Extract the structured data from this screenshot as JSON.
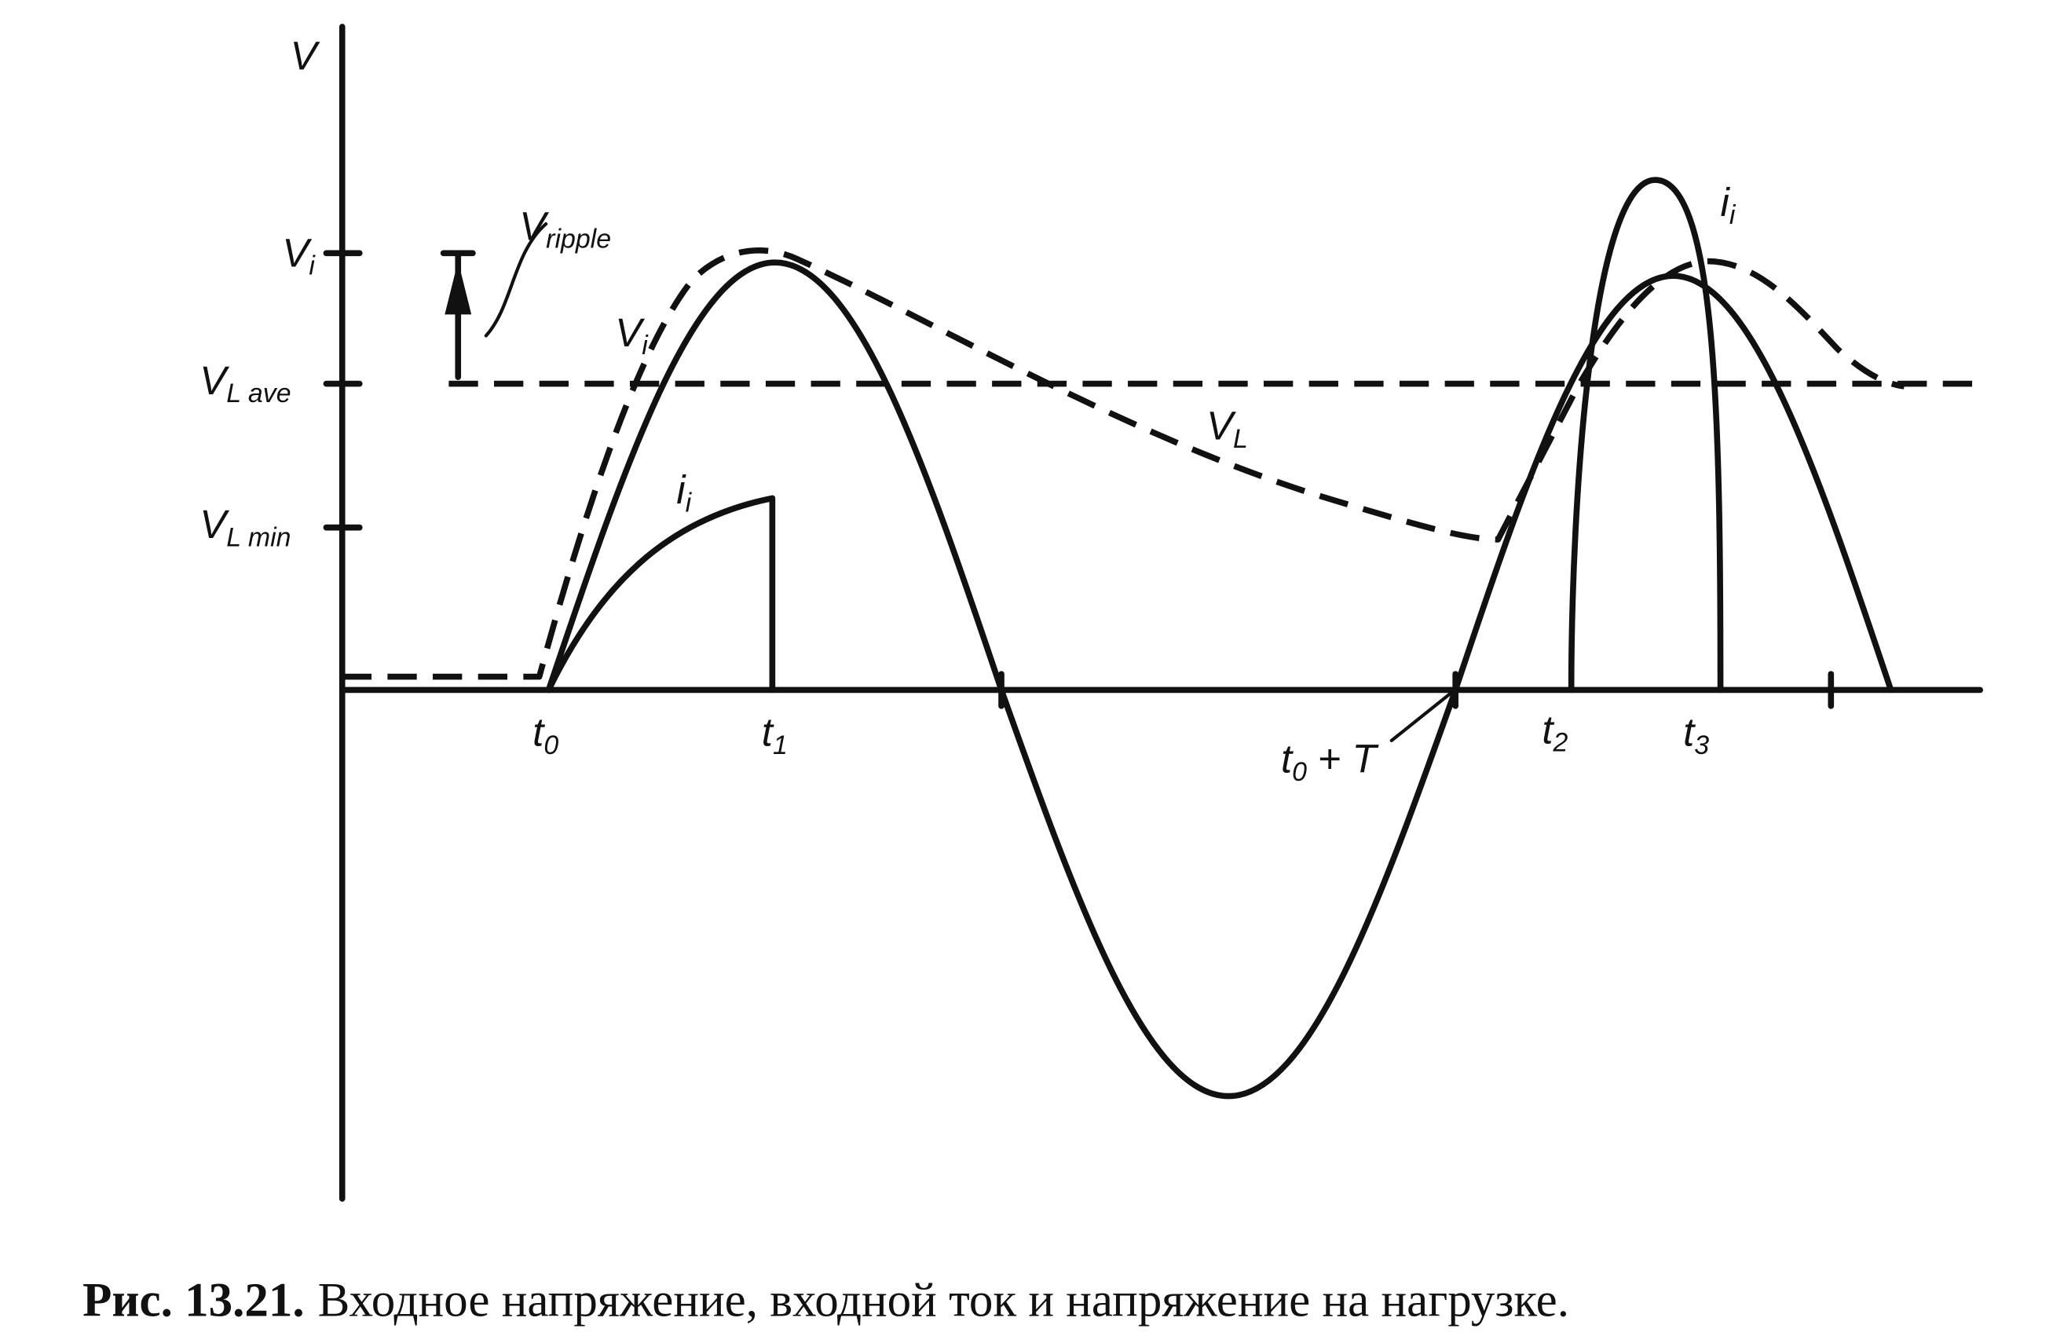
{
  "axis_label": "V",
  "y_labels": [
    {
      "symbol": "V",
      "subscript": "i"
    },
    {
      "symbol": "V",
      "subscript": "L ave"
    },
    {
      "symbol": "V",
      "subscript": "L min"
    }
  ],
  "x_labels": [
    {
      "symbol": "t",
      "subscript": "0"
    },
    {
      "symbol": "t",
      "subscript": "1"
    },
    {
      "symbol": "t",
      "subscript": "0",
      "suffix": "+ T"
    },
    {
      "symbol": "t",
      "subscript": "2"
    },
    {
      "symbol": "t",
      "subscript": "3"
    }
  ],
  "curve_labels": {
    "ripple": {
      "symbol": "V",
      "subscript": "ripple"
    },
    "input_voltage": {
      "symbol": "V",
      "subscript": "i"
    },
    "load_voltage": {
      "symbol": "V",
      "subscript": "L"
    },
    "current_1": {
      "symbol": "i",
      "subscript": "i"
    },
    "current_2": {
      "symbol": "i",
      "subscript": "i"
    }
  },
  "caption": {
    "number": "Рис. 13.21.",
    "text": "Входное напряжение, входной ток и напряжение на нагрузке."
  }
}
